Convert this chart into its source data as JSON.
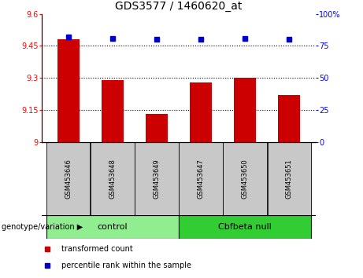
{
  "title": "GDS3577 / 1460620_at",
  "samples": [
    "GSM453646",
    "GSM453648",
    "GSM453649",
    "GSM453647",
    "GSM453650",
    "GSM453651"
  ],
  "bar_values": [
    9.48,
    9.29,
    9.13,
    9.28,
    9.3,
    9.22
  ],
  "percentile_values": [
    82,
    81,
    80,
    80,
    81,
    80
  ],
  "bar_color": "#cc0000",
  "dot_color": "#0000cc",
  "ylim_left": [
    9.0,
    9.6
  ],
  "ylim_right": [
    0,
    100
  ],
  "yticks_left": [
    9.0,
    9.15,
    9.3,
    9.45,
    9.6
  ],
  "ytick_labels_left": [
    "9",
    "9.15",
    "9.3",
    "9.45",
    "9.6"
  ],
  "yticks_right": [
    0,
    25,
    50,
    75,
    100
  ],
  "ytick_labels_right": [
    "0",
    "25",
    "50",
    "75",
    "100%"
  ],
  "grid_yticks": [
    9.15,
    9.3,
    9.45
  ],
  "groups": [
    {
      "start": 0,
      "end": 2,
      "label": "control",
      "color": "#90ee90"
    },
    {
      "start": 3,
      "end": 5,
      "label": "Cbfbeta null",
      "color": "#32cd32"
    }
  ],
  "genotype_label": "genotype/variation",
  "legend": [
    {
      "label": "transformed count",
      "color": "#cc0000"
    },
    {
      "label": "percentile rank within the sample",
      "color": "#0000cc"
    }
  ],
  "title_fontsize": 10,
  "axis_fontsize": 7,
  "sample_fontsize": 6,
  "group_fontsize": 8,
  "legend_fontsize": 7,
  "genotype_fontsize": 7
}
